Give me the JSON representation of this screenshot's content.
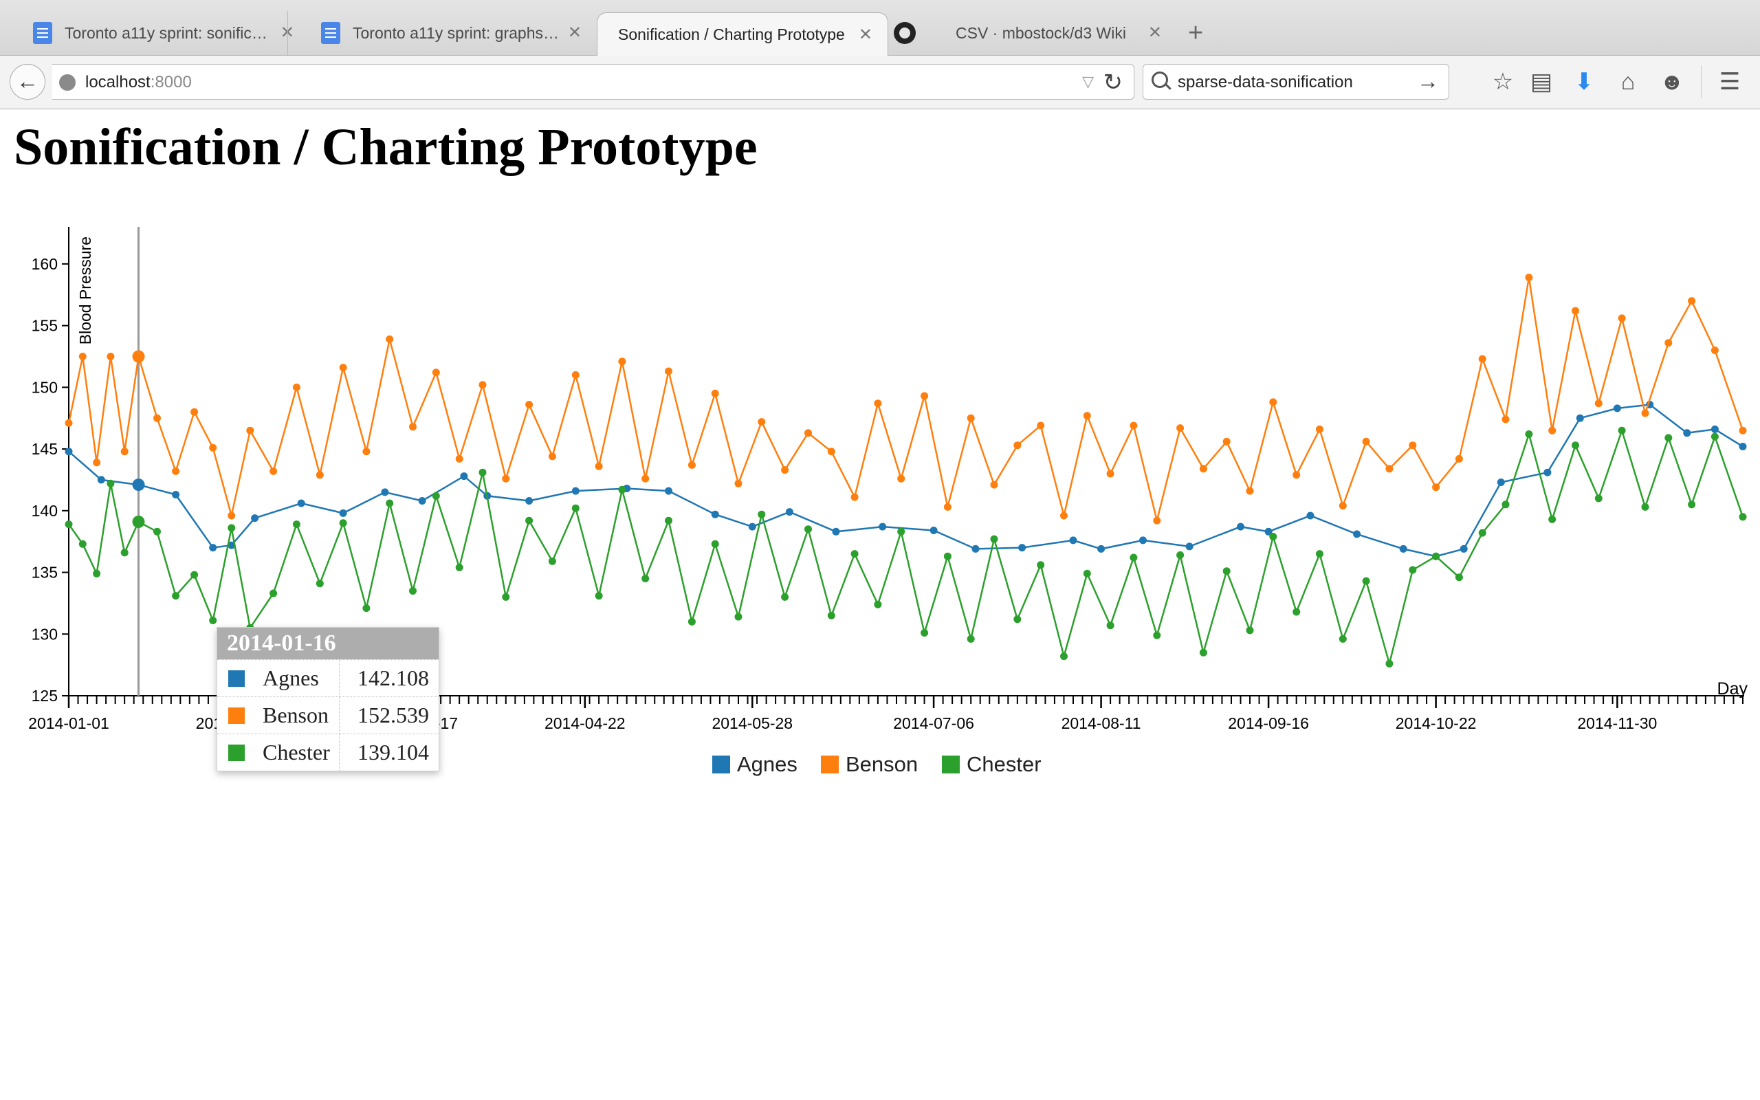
{
  "browser": {
    "tabs": [
      {
        "label": "Toronto a11y sprint: sonific…",
        "icon": "google-docs-icon",
        "active": false
      },
      {
        "label": "Toronto a11y sprint: graphs…",
        "icon": "google-docs-icon",
        "active": false
      },
      {
        "label": "Sonification / Charting Prototype",
        "icon": "",
        "active": true
      },
      {
        "label": "CSV · mbostock/d3 Wiki",
        "icon": "github-icon",
        "active": false
      }
    ],
    "close_glyph": "✕",
    "new_tab_glyph": "+",
    "url_host": "localhost",
    "url_port": ":8000",
    "search_query": "sparse-data-sonification",
    "icons": {
      "back": "←",
      "reload": "↻",
      "search_go": "→",
      "dropdown": "▽",
      "bookmark": "☆",
      "reader": "▤",
      "download": "⬇",
      "home": "⌂",
      "chat": "☻",
      "menu": "☰"
    }
  },
  "page": {
    "title": "Sonification / Charting Prototype"
  },
  "colors": {
    "Agnes": "#1f77b4",
    "Benson": "#ff7f0e",
    "Chester": "#2ca02c",
    "tooltip_header": "#adadad"
  },
  "tooltip": {
    "date": "2014-01-16",
    "rows": [
      {
        "name": "Agnes",
        "value": "142.108"
      },
      {
        "name": "Benson",
        "value": "152.539"
      },
      {
        "name": "Chester",
        "value": "139.104"
      }
    ]
  },
  "chart_data": {
    "type": "line",
    "ylabel": "Blood Pressure",
    "xlabel": "Day",
    "ylim": [
      125,
      162
    ],
    "yticks": [
      125,
      130,
      135,
      140,
      145,
      150,
      155,
      160
    ],
    "xrange": [
      "2014-01-01",
      "2014-12-27"
    ],
    "xtick_labels": [
      "2014-01-01",
      "2014-02-06",
      "2014-03-17",
      "2014-04-22",
      "2014-05-28",
      "2014-07-06",
      "2014-08-11",
      "2014-09-16",
      "2014-10-22",
      "2014-11-30"
    ],
    "minor_ticks": "daily",
    "legend": "bottom-center",
    "hover_date": "2014-01-16",
    "series": [
      {
        "name": "Agnes",
        "dates": [
          "2014-01-01",
          "2014-01-08",
          "2014-01-16",
          "2014-01-24",
          "2014-02-01",
          "2014-02-05",
          "2014-02-10",
          "2014-02-20",
          "2014-03-01",
          "2014-03-10",
          "2014-03-18",
          "2014-03-27",
          "2014-04-01",
          "2014-04-10",
          "2014-04-20",
          "2014-05-01",
          "2014-05-10",
          "2014-05-20",
          "2014-05-28",
          "2014-06-05",
          "2014-06-15",
          "2014-06-25",
          "2014-07-06",
          "2014-07-15",
          "2014-07-25",
          "2014-08-05",
          "2014-08-11",
          "2014-08-20",
          "2014-08-30",
          "2014-09-10",
          "2014-09-16",
          "2014-09-25",
          "2014-10-05",
          "2014-10-15",
          "2014-10-22",
          "2014-10-28",
          "2014-11-05",
          "2014-11-15",
          "2014-11-22",
          "2014-11-30",
          "2014-12-07",
          "2014-12-15",
          "2014-12-21",
          "2014-12-27"
        ],
        "values": [
          144.8,
          142.5,
          142.1,
          141.3,
          137.0,
          137.2,
          139.4,
          140.6,
          139.8,
          141.5,
          140.8,
          142.8,
          141.2,
          140.8,
          141.6,
          141.8,
          141.6,
          139.7,
          138.7,
          139.9,
          138.3,
          138.7,
          138.4,
          136.9,
          137.0,
          137.6,
          136.9,
          137.6,
          137.1,
          138.7,
          138.3,
          139.6,
          138.1,
          136.9,
          136.3,
          136.9,
          142.3,
          143.1,
          147.5,
          148.3,
          148.6,
          146.3,
          146.6,
          145.2
        ]
      },
      {
        "name": "Benson",
        "dates": [
          "2014-01-01",
          "2014-01-04",
          "2014-01-07",
          "2014-01-10",
          "2014-01-13",
          "2014-01-16",
          "2014-01-20",
          "2014-01-24",
          "2014-01-28",
          "2014-02-01",
          "2014-02-05",
          "2014-02-09",
          "2014-02-14",
          "2014-02-19",
          "2014-02-24",
          "2014-03-01",
          "2014-03-06",
          "2014-03-11",
          "2014-03-16",
          "2014-03-21",
          "2014-03-26",
          "2014-03-31",
          "2014-04-05",
          "2014-04-10",
          "2014-04-15",
          "2014-04-20",
          "2014-04-25",
          "2014-04-30",
          "2014-05-05",
          "2014-05-10",
          "2014-05-15",
          "2014-05-20",
          "2014-05-25",
          "2014-05-30",
          "2014-06-04",
          "2014-06-09",
          "2014-06-14",
          "2014-06-19",
          "2014-06-24",
          "2014-06-29",
          "2014-07-04",
          "2014-07-09",
          "2014-07-14",
          "2014-07-19",
          "2014-07-24",
          "2014-07-29",
          "2014-08-03",
          "2014-08-08",
          "2014-08-13",
          "2014-08-18",
          "2014-08-23",
          "2014-08-28",
          "2014-09-02",
          "2014-09-07",
          "2014-09-12",
          "2014-09-17",
          "2014-09-22",
          "2014-09-27",
          "2014-10-02",
          "2014-10-07",
          "2014-10-12",
          "2014-10-17",
          "2014-10-22",
          "2014-10-27",
          "2014-11-01",
          "2014-11-06",
          "2014-11-11",
          "2014-11-16",
          "2014-11-21",
          "2014-11-26",
          "2014-12-01",
          "2014-12-06",
          "2014-12-11",
          "2014-12-16",
          "2014-12-21",
          "2014-12-27"
        ],
        "values": [
          147.1,
          152.5,
          143.9,
          152.5,
          144.8,
          152.5,
          147.5,
          143.2,
          148.0,
          145.1,
          139.6,
          146.5,
          143.2,
          150.0,
          142.9,
          151.6,
          144.8,
          153.9,
          146.8,
          151.2,
          144.2,
          150.2,
          142.6,
          148.6,
          144.4,
          151.0,
          143.6,
          152.1,
          142.6,
          151.3,
          143.7,
          149.5,
          142.2,
          147.2,
          143.3,
          146.3,
          144.8,
          141.1,
          148.7,
          142.6,
          149.3,
          140.3,
          147.5,
          142.1,
          145.3,
          146.9,
          139.6,
          147.7,
          143.0,
          146.9,
          139.2,
          146.7,
          143.4,
          145.6,
          141.6,
          148.8,
          142.9,
          146.6,
          140.4,
          145.6,
          143.4,
          145.3,
          141.9,
          144.2,
          152.3,
          147.4,
          158.9,
          146.5,
          156.2,
          148.7,
          155.6,
          147.9,
          153.6,
          157.0,
          153.0,
          146.5
        ]
      },
      {
        "name": "Chester",
        "dates": [
          "2014-01-01",
          "2014-01-04",
          "2014-01-07",
          "2014-01-10",
          "2014-01-13",
          "2014-01-16",
          "2014-01-20",
          "2014-01-24",
          "2014-01-28",
          "2014-02-01",
          "2014-02-05",
          "2014-02-09",
          "2014-02-14",
          "2014-02-19",
          "2014-02-24",
          "2014-03-01",
          "2014-03-06",
          "2014-03-11",
          "2014-03-16",
          "2014-03-21",
          "2014-03-26",
          "2014-03-31",
          "2014-04-05",
          "2014-04-10",
          "2014-04-15",
          "2014-04-20",
          "2014-04-25",
          "2014-04-30",
          "2014-05-05",
          "2014-05-10",
          "2014-05-15",
          "2014-05-20",
          "2014-05-25",
          "2014-05-30",
          "2014-06-04",
          "2014-06-09",
          "2014-06-14",
          "2014-06-19",
          "2014-06-24",
          "2014-06-29",
          "2014-07-04",
          "2014-07-09",
          "2014-07-14",
          "2014-07-19",
          "2014-07-24",
          "2014-07-29",
          "2014-08-03",
          "2014-08-08",
          "2014-08-13",
          "2014-08-18",
          "2014-08-23",
          "2014-08-28",
          "2014-09-02",
          "2014-09-07",
          "2014-09-12",
          "2014-09-17",
          "2014-09-22",
          "2014-09-27",
          "2014-10-02",
          "2014-10-07",
          "2014-10-12",
          "2014-10-17",
          "2014-10-22",
          "2014-10-27",
          "2014-11-01",
          "2014-11-06",
          "2014-11-11",
          "2014-11-16",
          "2014-11-21",
          "2014-11-26",
          "2014-12-01",
          "2014-12-06",
          "2014-12-11",
          "2014-12-16",
          "2014-12-21",
          "2014-12-27"
        ],
        "values": [
          138.9,
          137.3,
          134.9,
          142.2,
          136.6,
          139.1,
          138.3,
          133.1,
          134.8,
          131.1,
          138.6,
          130.5,
          133.3,
          138.9,
          134.1,
          139.0,
          132.1,
          140.6,
          133.5,
          141.2,
          135.4,
          143.1,
          133.0,
          139.2,
          135.9,
          140.2,
          133.1,
          141.7,
          134.5,
          139.2,
          131.0,
          137.3,
          131.4,
          139.7,
          133.0,
          138.5,
          131.5,
          136.5,
          132.4,
          138.3,
          130.1,
          136.3,
          129.6,
          137.7,
          131.2,
          135.6,
          128.2,
          134.9,
          130.7,
          136.2,
          129.9,
          136.4,
          128.5,
          135.1,
          130.3,
          137.9,
          131.8,
          136.5,
          129.6,
          134.3,
          127.6,
          135.2,
          136.3,
          134.6,
          138.2,
          140.5,
          146.2,
          139.3,
          145.3,
          141.0,
          146.5,
          140.3,
          145.9,
          140.5,
          146.0,
          139.5
        ]
      }
    ]
  }
}
